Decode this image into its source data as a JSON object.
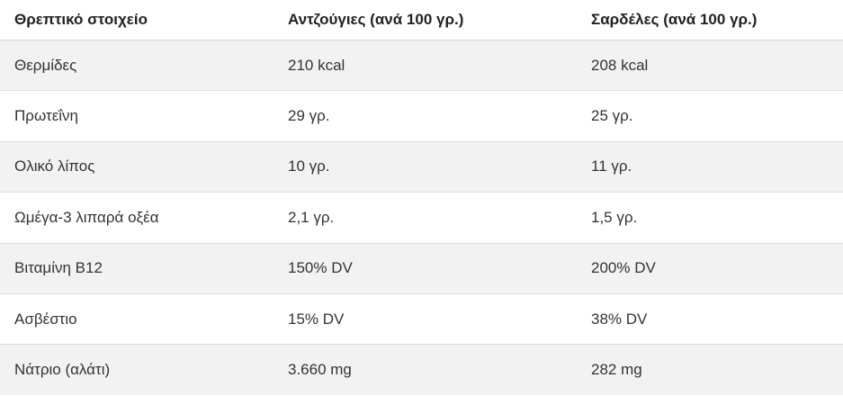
{
  "table": {
    "header": [
      "Θρεπτικό στοιχείο",
      "Αντζούγιες (ανά 100 γρ.)",
      "Σαρδέλες (ανά 100 γρ.)"
    ],
    "rows": [
      [
        "Θερμίδες",
        "210 kcal",
        "208 kcal"
      ],
      [
        "Πρωτεΐνη",
        "29 γρ.",
        "25 γρ."
      ],
      [
        "Ολικό λίπος",
        "10 γρ.",
        "11 γρ."
      ],
      [
        "Ωμέγα-3 λιπαρά οξέα",
        "2,1 γρ.",
        "1,5 γρ."
      ],
      [
        "Βιταμίνη Β12",
        "150% DV",
        "200% DV"
      ],
      [
        "Ασβέστιο",
        "15% DV",
        "38% DV"
      ],
      [
        "Νάτριο (αλάτι)",
        "3.660 mg",
        "282 mg"
      ]
    ]
  }
}
